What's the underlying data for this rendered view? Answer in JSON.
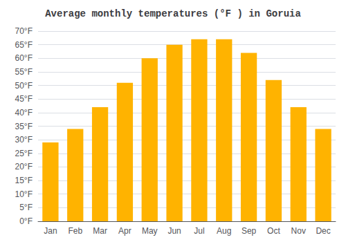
{
  "chart_data": {
    "type": "bar",
    "title": "Average monthly temperatures (°F ) in Goruia",
    "categories": [
      "Jan",
      "Feb",
      "Mar",
      "Apr",
      "May",
      "Jun",
      "Jul",
      "Aug",
      "Sep",
      "Oct",
      "Nov",
      "Dec"
    ],
    "values": [
      29,
      34,
      42,
      51,
      60,
      65,
      67,
      67,
      62,
      52,
      42,
      34
    ],
    "color": "#FFB300",
    "ylim": [
      0,
      70
    ],
    "yticks": [
      {
        "value": 0,
        "label": "0°F"
      },
      {
        "value": 5,
        "label": "5°F"
      },
      {
        "value": 10,
        "label": "10°F"
      },
      {
        "value": 15,
        "label": "15°F"
      },
      {
        "value": 20,
        "label": "20°F"
      },
      {
        "value": 25,
        "label": "25°F"
      },
      {
        "value": 30,
        "label": "30°F"
      },
      {
        "value": 35,
        "label": "35°F"
      },
      {
        "value": 40,
        "label": "40°F"
      },
      {
        "value": 45,
        "label": "45°F"
      },
      {
        "value": 50,
        "label": "50°F"
      },
      {
        "value": 55,
        "label": "55°F"
      },
      {
        "value": 60,
        "label": "60°F"
      },
      {
        "value": 65,
        "label": "65°F"
      },
      {
        "value": 70,
        "label": "70°F"
      }
    ],
    "grid": true
  }
}
